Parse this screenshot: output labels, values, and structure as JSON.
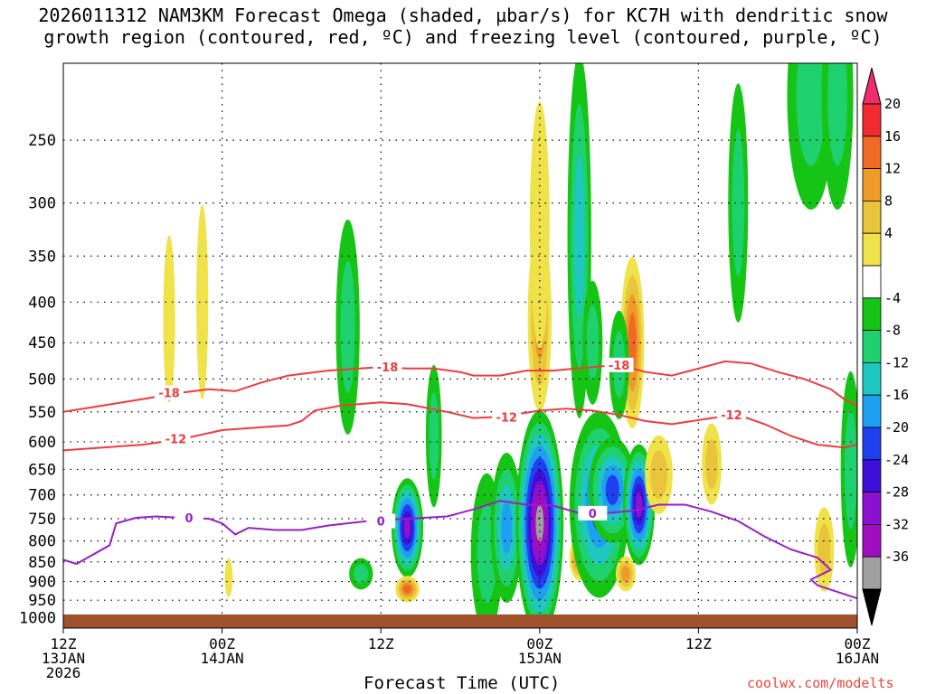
{
  "chart_data": {
    "type": "heatmap",
    "title_line1": "2026011312 NAM3KM Forecast Omega (shaded, µbar/s) for KC7H with dendritic snow",
    "title_line2": "growth region (contoured, red, ºC) and freezing level (contoured, purple, ºC)",
    "xlabel": "Forecast Time (UTC)",
    "credit": "coolwx.com/modelts",
    "y_axis": {
      "type": "pressure",
      "units": "hPa",
      "range": [
        1030,
        200
      ],
      "ticks": [
        250,
        300,
        350,
        400,
        450,
        500,
        550,
        600,
        650,
        700,
        750,
        800,
        850,
        900,
        950,
        1000
      ]
    },
    "x_axis": {
      "range_hours": [
        0,
        60
      ],
      "ticks": [
        {
          "hour": 0,
          "l1": "12Z",
          "l2": "13JAN",
          "l3": "2026"
        },
        {
          "hour": 12,
          "l1": "00Z",
          "l2": "14JAN",
          "l3": ""
        },
        {
          "hour": 24,
          "l1": "12Z",
          "l2": "",
          "l3": ""
        },
        {
          "hour": 36,
          "l1": "00Z",
          "l2": "15JAN",
          "l3": ""
        },
        {
          "hour": 48,
          "l1": "12Z",
          "l2": "",
          "l3": ""
        },
        {
          "hour": 60,
          "l1": "00Z",
          "l2": "16JAN",
          "l3": ""
        }
      ]
    },
    "colorbar": {
      "labels": [
        "20",
        "16",
        "12",
        "8",
        "4",
        "-4",
        "-8",
        "-12",
        "-16",
        "-20",
        "-24",
        "-28",
        "-32",
        "-36"
      ],
      "colors": [
        "#f02c6e",
        "#ef2a30",
        "#f06a26",
        "#f09a28",
        "#e8c53a",
        "#f0e24a",
        "#ffffff",
        "#16c416",
        "#1fd06e",
        "#1ec8c0",
        "#1ea0f0",
        "#2040f0",
        "#3c10d8",
        "#8c10d0",
        "#a00ec0",
        "#a0a0a0",
        "#000000"
      ]
    },
    "contour_levels": {
      "dendritic_snow_growth": [
        -12,
        -18
      ],
      "freezing_level": [
        0
      ]
    },
    "contour_series": [
      {
        "name": "-18",
        "color": "#ef3b3b",
        "points": [
          [
            0,
            550
          ],
          [
            3,
            540
          ],
          [
            6,
            530
          ],
          [
            9,
            520
          ],
          [
            11,
            515
          ],
          [
            13,
            518
          ],
          [
            15,
            505
          ],
          [
            17,
            495
          ],
          [
            20,
            488
          ],
          [
            24,
            483
          ],
          [
            26,
            485
          ],
          [
            28,
            485
          ],
          [
            30,
            490
          ],
          [
            31,
            495
          ],
          [
            33,
            495
          ],
          [
            35,
            488
          ],
          [
            37,
            488
          ],
          [
            40,
            483
          ],
          [
            42,
            480
          ],
          [
            44,
            490
          ],
          [
            46,
            495
          ],
          [
            48,
            485
          ],
          [
            50,
            475
          ],
          [
            52,
            478
          ],
          [
            54,
            490
          ],
          [
            56,
            500
          ],
          [
            58,
            515
          ],
          [
            59,
            530
          ],
          [
            60,
            540
          ]
        ],
        "label_hours": [
          8,
          24.5,
          42
        ]
      },
      {
        "name": "-12",
        "color": "#ef3b3b",
        "points": [
          [
            0,
            615
          ],
          [
            3,
            610
          ],
          [
            6,
            605
          ],
          [
            9,
            595
          ],
          [
            12,
            580
          ],
          [
            15,
            575
          ],
          [
            17,
            572
          ],
          [
            18,
            565
          ],
          [
            19,
            548
          ],
          [
            21,
            540
          ],
          [
            24,
            535
          ],
          [
            26,
            538
          ],
          [
            29,
            550
          ],
          [
            31,
            560
          ],
          [
            33,
            558
          ],
          [
            36,
            548
          ],
          [
            38,
            545
          ],
          [
            40,
            548
          ],
          [
            42,
            555
          ],
          [
            44,
            565
          ],
          [
            46,
            570
          ],
          [
            49,
            560
          ],
          [
            51,
            555
          ],
          [
            53,
            570
          ],
          [
            55,
            590
          ],
          [
            57,
            605
          ],
          [
            59,
            610
          ],
          [
            60,
            605
          ]
        ],
        "label_hours": [
          8.5,
          33.5,
          50.5
        ]
      },
      {
        "name": "0",
        "color": "#9a1ec8",
        "points": [
          [
            0,
            845
          ],
          [
            1,
            855
          ],
          [
            3.5,
            810
          ],
          [
            4,
            760
          ],
          [
            5.5,
            748
          ],
          [
            7,
            745
          ],
          [
            9,
            748
          ],
          [
            11,
            750
          ],
          [
            12,
            760
          ],
          [
            13,
            785
          ],
          [
            14,
            770
          ],
          [
            16,
            775
          ],
          [
            18,
            775
          ],
          [
            20,
            765
          ],
          [
            23,
            755
          ],
          [
            26,
            750
          ],
          [
            29,
            745
          ],
          [
            31,
            730
          ],
          [
            33,
            712
          ],
          [
            35,
            720
          ],
          [
            37,
            722
          ],
          [
            39,
            738
          ],
          [
            41,
            738
          ],
          [
            43,
            733
          ],
          [
            45,
            720
          ],
          [
            47,
            720
          ],
          [
            49,
            735
          ],
          [
            51,
            755
          ],
          [
            53,
            790
          ],
          [
            55,
            820
          ],
          [
            57,
            840
          ],
          [
            58,
            870
          ],
          [
            56.5,
            895
          ],
          [
            57,
            910
          ],
          [
            60,
            945
          ]
        ],
        "label_hours": [
          9.5,
          24,
          40
        ]
      }
    ],
    "omega_cells": [
      {
        "h": 26,
        "p": 770,
        "v": -28,
        "hw": 0.8,
        "hp": 220
      },
      {
        "h": 26,
        "p": 920,
        "v": 16,
        "hw": 0.6,
        "hp": 70
      },
      {
        "h": 22.5,
        "p": 880,
        "v": -8,
        "hw": 0.6,
        "hp": 80
      },
      {
        "h": 21.5,
        "p": 430,
        "v": -8,
        "hw": 0.6,
        "hp": 260
      },
      {
        "h": 32,
        "p": 830,
        "v": -8,
        "hw": 0.8,
        "hp": 380
      },
      {
        "h": 33.5,
        "p": 770,
        "v": -16,
        "hw": 0.8,
        "hp": 330
      },
      {
        "h": 36,
        "p": 760,
        "v": -36,
        "hw": 1.2,
        "hp": 480
      },
      {
        "h": 36,
        "p": 420,
        "v": 12,
        "hw": 0.6,
        "hp": 220
      },
      {
        "h": 36,
        "p": 320,
        "v": 4,
        "hw": 0.5,
        "hp": 220
      },
      {
        "h": 39,
        "p": 330,
        "v": -12,
        "hw": 0.6,
        "hp": 320
      },
      {
        "h": 40,
        "p": 450,
        "v": -8,
        "hw": 0.5,
        "hp": 160
      },
      {
        "h": 39,
        "p": 840,
        "v": 16,
        "hw": 0.5,
        "hp": 110
      },
      {
        "h": 40.5,
        "p": 720,
        "v": -20,
        "hw": 1.5,
        "hp": 380
      },
      {
        "h": 41.5,
        "p": 690,
        "v": -20,
        "hw": 1.2,
        "hp": 210
      },
      {
        "h": 42.5,
        "p": 880,
        "v": 12,
        "hw": 0.5,
        "hp": 90
      },
      {
        "h": 43.5,
        "p": 720,
        "v": -28,
        "hw": 0.8,
        "hp": 250
      },
      {
        "h": 43,
        "p": 450,
        "v": 16,
        "hw": 0.6,
        "hp": 220
      },
      {
        "h": 42,
        "p": 480,
        "v": -8,
        "hw": 0.5,
        "hp": 150
      },
      {
        "h": 45,
        "p": 660,
        "v": 8,
        "hw": 0.7,
        "hp": 150
      },
      {
        "h": 49,
        "p": 640,
        "v": 8,
        "hw": 0.5,
        "hp": 150
      },
      {
        "h": 51,
        "p": 300,
        "v": -8,
        "hw": 0.5,
        "hp": 200
      },
      {
        "h": 56.5,
        "p": 220,
        "v": -8,
        "hw": 1.2,
        "hp": 140
      },
      {
        "h": 58.5,
        "p": 220,
        "v": -8,
        "hw": 0.8,
        "hp": 140
      },
      {
        "h": 59.5,
        "p": 650,
        "v": -8,
        "hw": 0.5,
        "hp": 360
      },
      {
        "h": 57.5,
        "p": 820,
        "v": 8,
        "hw": 0.5,
        "hp": 200
      },
      {
        "h": 8,
        "p": 420,
        "v": 4,
        "hw": 0.3,
        "hp": 200
      },
      {
        "h": 10.5,
        "p": 400,
        "v": 4,
        "hw": 0.3,
        "hp": 220
      },
      {
        "h": 12.5,
        "p": 890,
        "v": 4,
        "hw": 0.2,
        "hp": 100
      },
      {
        "h": 28,
        "p": 590,
        "v": -8,
        "hw": 0.4,
        "hp": 240
      }
    ]
  }
}
